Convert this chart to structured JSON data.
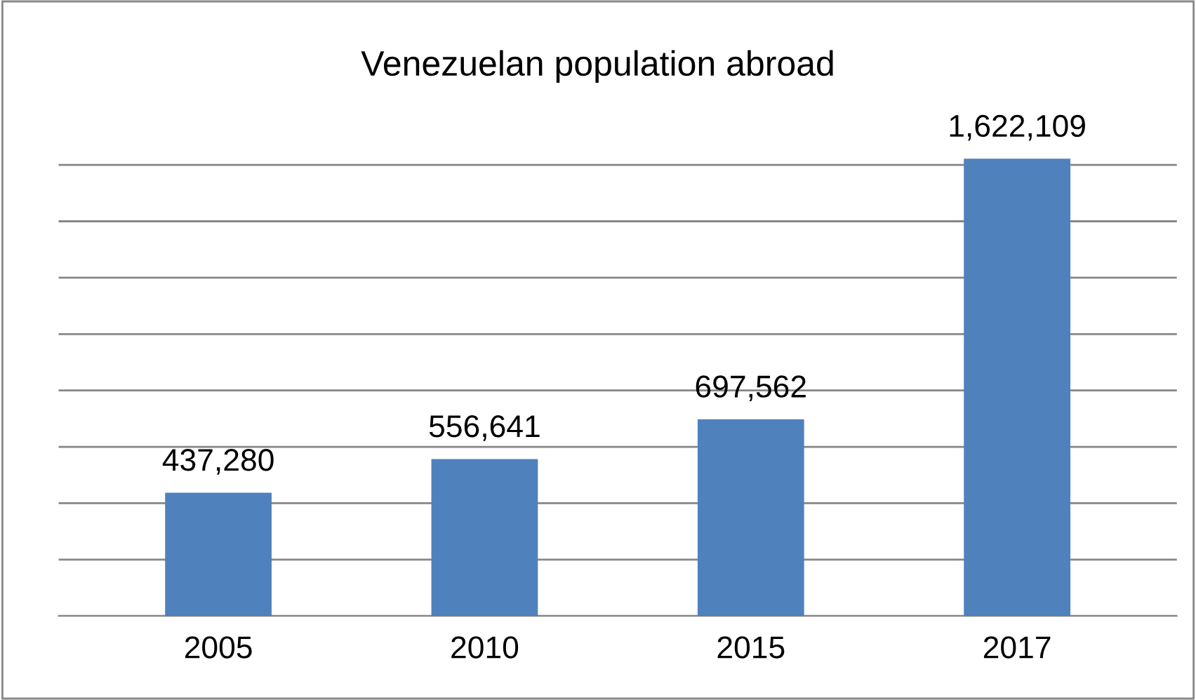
{
  "chart_data": {
    "type": "bar",
    "title": "Venezuelan population abroad",
    "categories": [
      "2005",
      "2010",
      "2015",
      "2017"
    ],
    "values": [
      437280,
      556641,
      697562,
      1622109
    ],
    "color": "#4f81bd",
    "value_labels": [
      "437,280",
      "556,641",
      "697,562",
      "1,622,109"
    ],
    "tick_labels": "x",
    "grid": "y"
  }
}
